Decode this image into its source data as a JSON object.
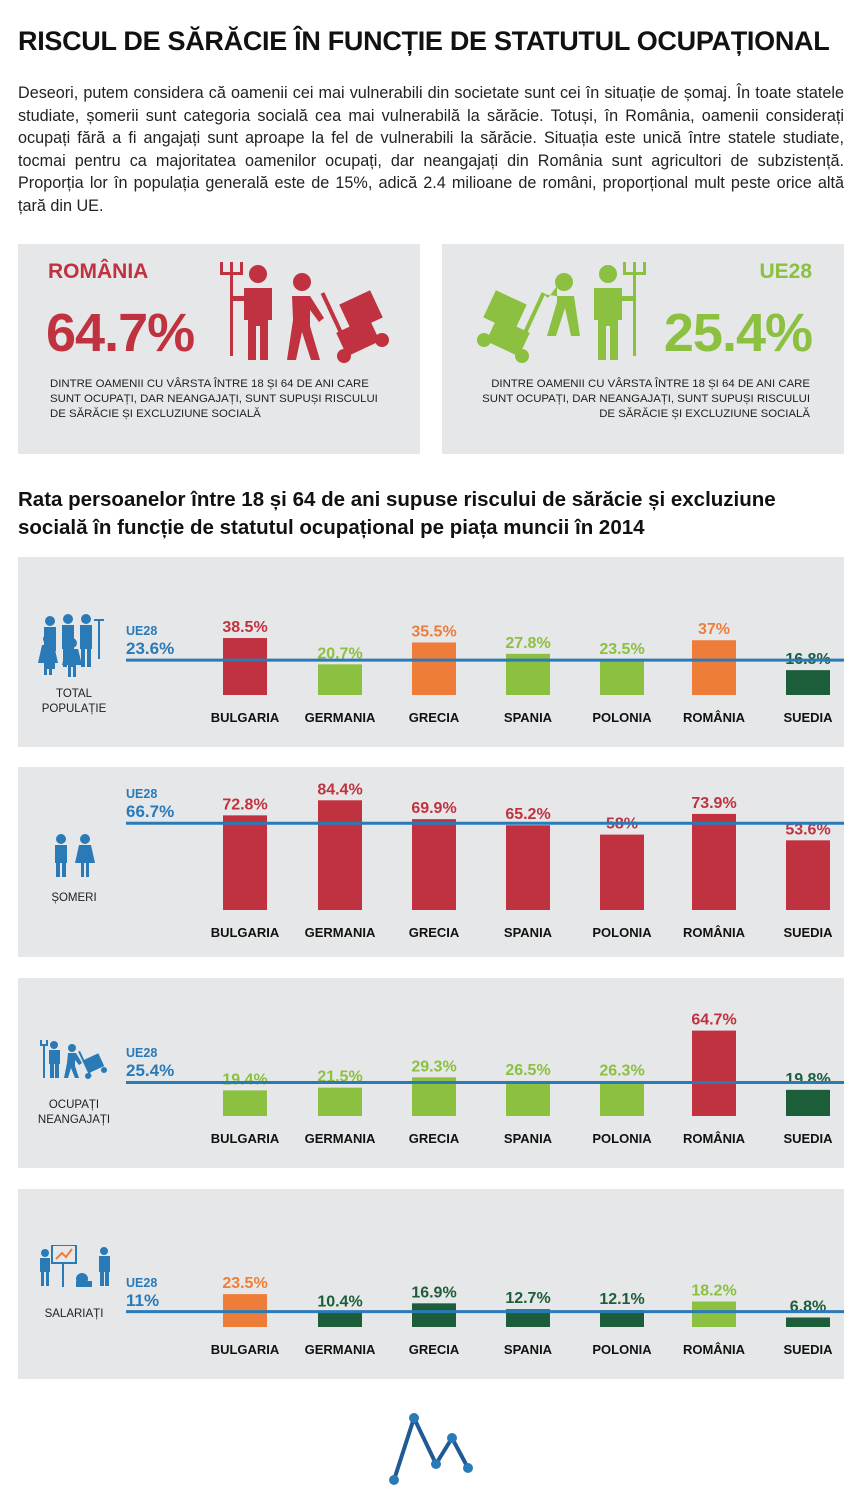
{
  "title": "RISCUL DE SĂRĂCIE ÎN FUNCȚIE DE STATUTUL OCUPAȚIONAL",
  "intro": "Deseori, putem considera că oamenii cei mai vulnerabili din societate sunt cei în situație de șomaj. În toate statele studiate, șomerii sunt categoria socială cea mai vulnerabilă la sărăcie. Totuși, în România, oamenii considerați ocupați fără a fi angajați sunt aproape la fel de vulnerabili la sărăcie. Situația este unică între statele studiate, tocmai pentru ca majoritatea oamenilor ocupați, dar neangajați din România sunt agricultori de subzistență. Proporția lor în populația generală este de 15%, adică 2.4 milioane de români, proporțional mult peste orice altă țară din UE.",
  "highlight_romania": {
    "label": "ROMÂNIA",
    "value": "64.7%",
    "description": "DINTRE OAMENII CU VÂRSTA ÎNTRE 18 ȘI 64 DE ANI CARE SUNT OCUPAȚI, DAR NEANGAJAȚI, SUNT SUPUȘI RISCULUI DE SĂRĂCIE ȘI EXCLUZIUNE SOCIALĂ",
    "color": "#c0323f"
  },
  "highlight_eu": {
    "label": "UE28",
    "value": "25.4%",
    "description": "DINTRE OAMENII CU VÂRSTA ÎNTRE 18 ȘI 64 DE ANI CARE SUNT OCUPAȚI, DAR NEANGAJAȚI, SUNT SUPUȘI RISCULUI DE SĂRĂCIE ȘI EXCLUZIUNE SOCIALĂ",
    "color": "#8cc040"
  },
  "subtitle": "Rata persoanelor între 18 și 64 de ani supuse riscului de sărăcie și excluziune socială în funcție de statutul ocupațional pe piața muncii în 2014",
  "colors": {
    "red": "#c0323f",
    "orange": "#ef7d3a",
    "light_green": "#8cc040",
    "dark_green": "#1d5e3a",
    "reference_line": "#2a7ab8",
    "panel_bg": "#e6e7e8"
  },
  "chart_data": [
    {
      "type": "bar",
      "group": "TOTAL POPULAȚIE",
      "icon": "population-group-icon",
      "categories": [
        "BULGARIA",
        "GERMANIA",
        "GRECIA",
        "SPANIA",
        "POLONIA",
        "ROMÂNIA",
        "SUEDIA"
      ],
      "values": [
        38.5,
        20.7,
        35.5,
        27.8,
        23.5,
        37,
        16.8
      ],
      "value_labels": [
        "38.5%",
        "20.7%",
        "35.5%",
        "27.8%",
        "23.5%",
        "37%",
        "16.8%"
      ],
      "colors": [
        "#c0323f",
        "#8cc040",
        "#ef7d3a",
        "#8cc040",
        "#8cc040",
        "#ef7d3a",
        "#1d5e3a"
      ],
      "reference": {
        "label": "UE28",
        "value": 23.6,
        "value_label": "23.6%"
      }
    },
    {
      "type": "bar",
      "group": "ȘOMERI",
      "icon": "unemployed-people-icon",
      "categories": [
        "BULGARIA",
        "GERMANIA",
        "GRECIA",
        "SPANIA",
        "POLONIA",
        "ROMÂNIA",
        "SUEDIA"
      ],
      "values": [
        72.8,
        84.4,
        69.9,
        65.2,
        58,
        73.9,
        53.6
      ],
      "value_labels": [
        "72.8%",
        "84.4%",
        "69.9%",
        "65.2%",
        "58%",
        "73.9%",
        "53.6%"
      ],
      "colors": [
        "#c0323f",
        "#c0323f",
        "#c0323f",
        "#c0323f",
        "#c0323f",
        "#c0323f",
        "#c0323f"
      ],
      "reference": {
        "label": "UE28",
        "value": 66.7,
        "value_label": "66.7%"
      }
    },
    {
      "type": "bar",
      "group": "OCUPAȚI NEANGAJAȚI",
      "icon": "farmer-worker-icon",
      "categories": [
        "BULGARIA",
        "GERMANIA",
        "GRECIA",
        "SPANIA",
        "POLONIA",
        "ROMÂNIA",
        "SUEDIA"
      ],
      "values": [
        19.4,
        21.5,
        29.3,
        26.5,
        26.3,
        64.7,
        19.8
      ],
      "value_labels": [
        "19.4%",
        "21.5%",
        "29.3%",
        "26.5%",
        "26.3%",
        "64.7%",
        "19.8%"
      ],
      "colors": [
        "#8cc040",
        "#8cc040",
        "#8cc040",
        "#8cc040",
        "#8cc040",
        "#c0323f",
        "#1d5e3a"
      ],
      "reference": {
        "label": "UE28",
        "value": 25.4,
        "value_label": "25.4%"
      }
    },
    {
      "type": "bar",
      "group": "SALARIAȚI",
      "icon": "employees-icon",
      "categories": [
        "BULGARIA",
        "GERMANIA",
        "GRECIA",
        "SPANIA",
        "POLONIA",
        "ROMÂNIA",
        "SUEDIA"
      ],
      "values": [
        23.5,
        10.4,
        16.9,
        12.7,
        12.1,
        18.2,
        6.8
      ],
      "value_labels": [
        "23.5%",
        "10.4%",
        "16.9%",
        "12.7%",
        "12.1%",
        "18.2%",
        "6.8%"
      ],
      "colors": [
        "#ef7d3a",
        "#1d5e3a",
        "#1d5e3a",
        "#1d5e3a",
        "#1d5e3a",
        "#8cc040",
        "#1d5e3a"
      ],
      "reference": {
        "label": "UE28",
        "value": 11,
        "value_label": "11%"
      }
    }
  ],
  "logo": "logo-m-icon"
}
